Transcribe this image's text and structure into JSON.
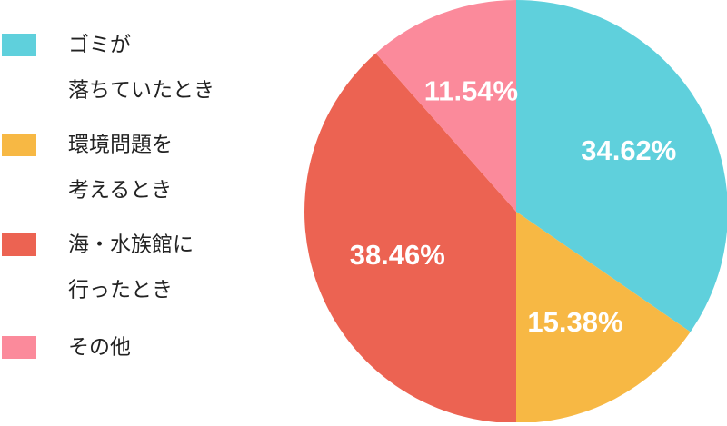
{
  "chart_data": {
    "type": "pie",
    "categories": [
      [
        "ゴミが",
        "落ちていたとき"
      ],
      [
        "環境問題を",
        "考えるとき"
      ],
      [
        "海・水族館に",
        "行ったとき"
      ],
      [
        "その他"
      ]
    ],
    "values": [
      34.62,
      15.38,
      38.46,
      11.54
    ],
    "value_labels": [
      "34.62%",
      "15.38%",
      "38.46%",
      "11.54%"
    ],
    "colors": [
      "#5fd0dc",
      "#f7b844",
      "#ec6352",
      "#fb8a9b"
    ]
  }
}
